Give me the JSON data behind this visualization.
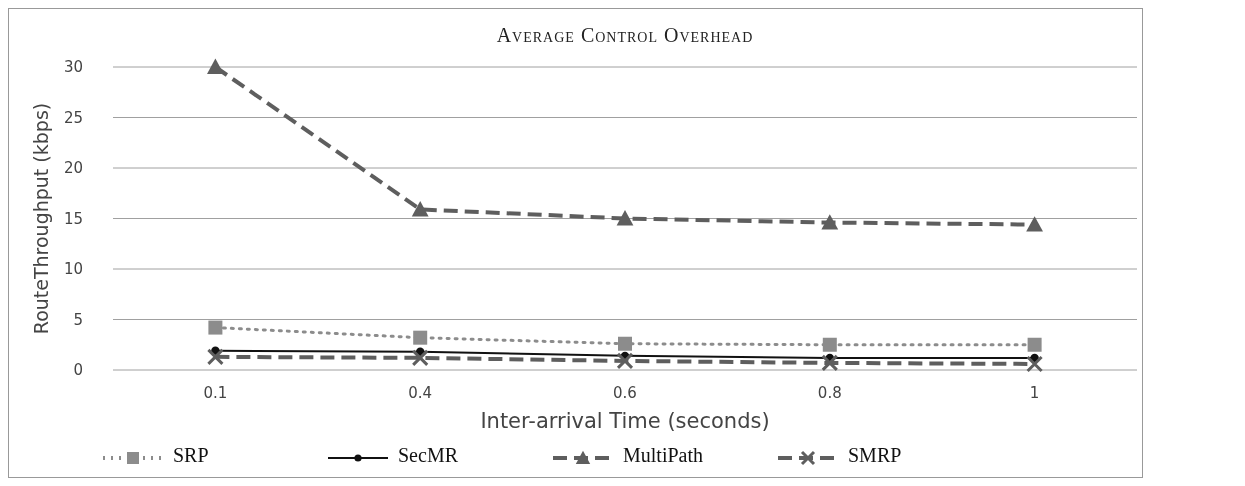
{
  "chart_data": {
    "type": "line",
    "title": "Average Control Overhead",
    "xlabel": "Inter-arrival Time (seconds)",
    "ylabel": "RouteThroughput (kbps)",
    "categories": [
      "0.1",
      "0.4",
      "0.6",
      "0.8",
      "1"
    ],
    "ylim": [
      0,
      30
    ],
    "yticks": [
      0,
      5,
      10,
      15,
      20,
      25,
      30
    ],
    "grid": "y",
    "legend": "bottom",
    "series": [
      {
        "name": "SRP",
        "color": "#8c8c8c",
        "marker": "square",
        "line_style": "dotted",
        "values": [
          4.2,
          3.2,
          2.6,
          2.5,
          2.5
        ]
      },
      {
        "name": "SecMR",
        "color": "#111111",
        "marker": "circle",
        "line_style": "solid",
        "values": [
          1.9,
          1.8,
          1.4,
          1.2,
          1.2
        ]
      },
      {
        "name": "MultiPath",
        "color": "#5e5e5e",
        "marker": "triangle",
        "line_style": "dashed",
        "values": [
          30,
          15.9,
          15,
          14.6,
          14.4
        ]
      },
      {
        "name": "SMRP",
        "color": "#5e5e5e",
        "marker": "cross",
        "line_style": "dashed",
        "values": [
          1.3,
          1.2,
          0.9,
          0.7,
          0.6
        ]
      }
    ]
  }
}
